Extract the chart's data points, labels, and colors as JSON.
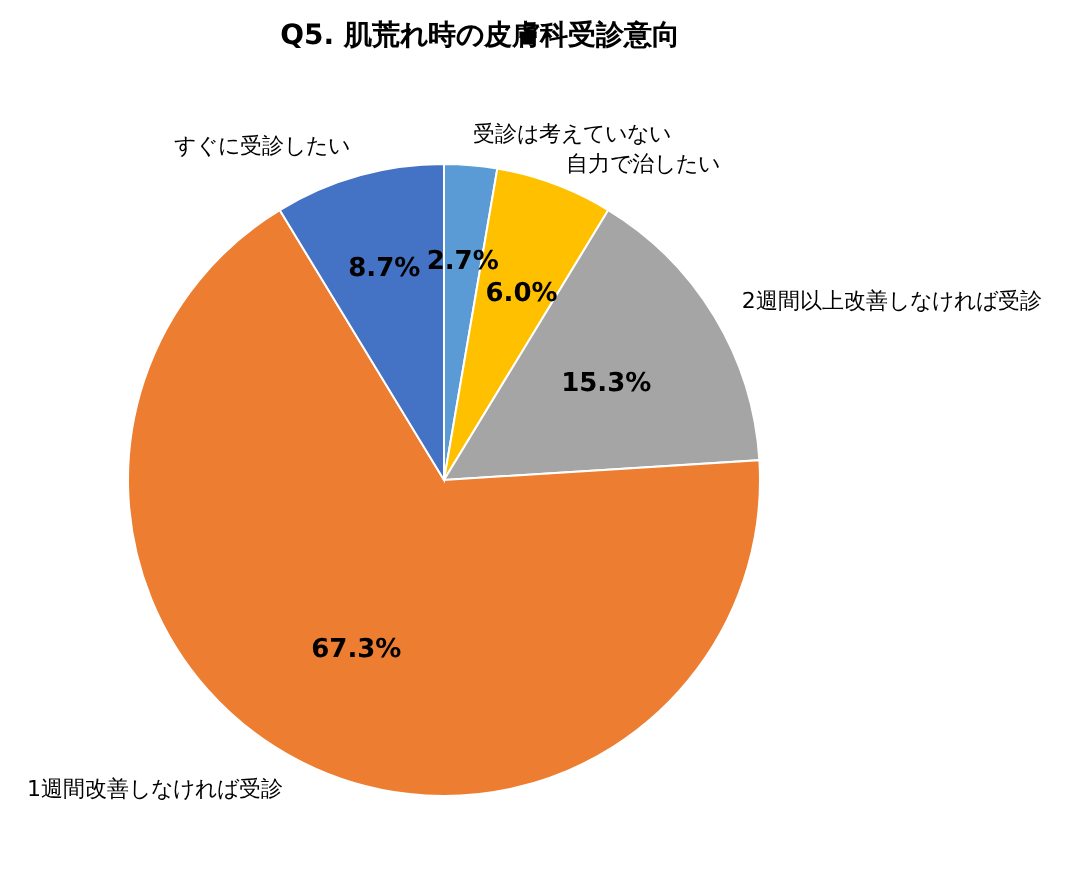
{
  "chart_data": {
    "type": "pie",
    "title": "Q5. 肌荒れ時の皮膚科受診意向",
    "categories": [
      "受診は考えていない",
      "自力で治したい",
      "2週間以上改善しなければ受診",
      "1週間改善しなければ受診",
      "すぐに受診したい"
    ],
    "values": [
      2.7,
      6.0,
      15.3,
      67.3,
      8.7
    ],
    "colors": [
      "#5b9bd5",
      "#ffc000",
      "#a5a5a5",
      "#ed7d31",
      "#4472c4"
    ],
    "value_labels": [
      "2.7%",
      "6.0%",
      "15.3%",
      "67.3%",
      "8.7%"
    ]
  }
}
